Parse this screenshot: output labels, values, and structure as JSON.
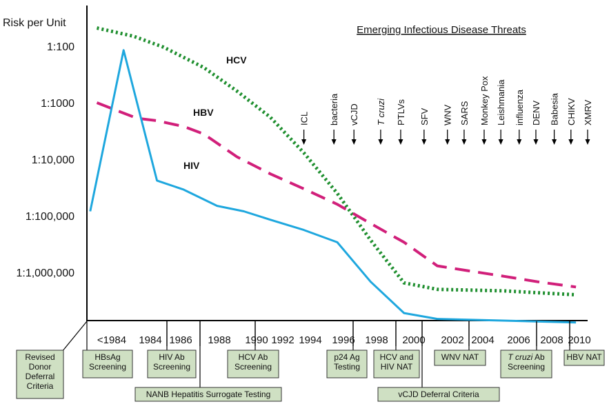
{
  "chart_data": {
    "type": "line",
    "title": "Emerging Infectious Disease Threats",
    "ylabel": "Risk per Unit",
    "y_scale": "log",
    "y_ticks": [
      {
        "label": "1:100",
        "value": 0.01
      },
      {
        "label": "1:1000",
        "value": 0.001
      },
      {
        "label": "1:10,000",
        "value": 0.0001
      },
      {
        "label": "1:100,000",
        "value": 1e-05
      },
      {
        "label": "1:1,000,000",
        "value": 1e-06
      }
    ],
    "ylim": [
      1e-07,
      0.1
    ],
    "x_ticks": [
      "<1984",
      "1984",
      "1986",
      "1988",
      "1990",
      "1992",
      "1994",
      "1996",
      "1998",
      "2000",
      "2002",
      "2004",
      "2006",
      "2008",
      "2010"
    ],
    "xlim": [
      1981,
      2011
    ],
    "series": [
      {
        "name": "HCV",
        "color": "#1f8f2f",
        "style": "dotted",
        "points": [
          {
            "x": 1981.6,
            "y": 0.021
          },
          {
            "x": 1983.8,
            "y": 0.015
          },
          {
            "x": 1985.6,
            "y": 0.0096
          },
          {
            "x": 1988.0,
            "y": 0.0042
          },
          {
            "x": 1990.0,
            "y": 0.0016
          },
          {
            "x": 1992.0,
            "y": 0.00055
          },
          {
            "x": 1994.0,
            "y": 0.00013
          },
          {
            "x": 1996.0,
            "y": 2.5e-05
          },
          {
            "x": 1998.0,
            "y": 3.7e-06
          },
          {
            "x": 2000.0,
            "y": 6.5e-07
          },
          {
            "x": 2002.0,
            "y": 5e-07
          },
          {
            "x": 2006.0,
            "y": 4.7e-07
          },
          {
            "x": 2010.3,
            "y": 4e-07
          }
        ]
      },
      {
        "name": "HBV",
        "color": "#d11f7a",
        "style": "dashed",
        "points": [
          {
            "x": 1981.6,
            "y": 0.001
          },
          {
            "x": 1984.0,
            "y": 0.00053
          },
          {
            "x": 1985.2,
            "y": 0.00048
          },
          {
            "x": 1986.8,
            "y": 0.00038
          },
          {
            "x": 1988.0,
            "y": 0.00028
          },
          {
            "x": 1990.0,
            "y": 0.00011
          },
          {
            "x": 1992.0,
            "y": 5.5e-05
          },
          {
            "x": 1994.0,
            "y": 3e-05
          },
          {
            "x": 1996.0,
            "y": 1.6e-05
          },
          {
            "x": 1998.0,
            "y": 7.3e-06
          },
          {
            "x": 2000.0,
            "y": 3.4e-06
          },
          {
            "x": 2002.0,
            "y": 1.3e-06
          },
          {
            "x": 2004.0,
            "y": 1.05e-06
          },
          {
            "x": 2006.0,
            "y": 8.5e-07
          },
          {
            "x": 2008.0,
            "y": 6.8e-07
          },
          {
            "x": 2010.3,
            "y": 5.5e-07
          }
        ]
      },
      {
        "name": "HIV",
        "color": "#1ea7de",
        "style": "solid",
        "points": [
          {
            "x": 1981.2,
            "y": 1.2e-05
          },
          {
            "x": 1983.2,
            "y": 0.0085
          },
          {
            "x": 1985.2,
            "y": 4.2e-05
          },
          {
            "x": 1986.8,
            "y": 2.9e-05
          },
          {
            "x": 1988.8,
            "y": 1.5e-05
          },
          {
            "x": 1990.4,
            "y": 1.2e-05
          },
          {
            "x": 1992.0,
            "y": 8.5e-06
          },
          {
            "x": 1994.0,
            "y": 5.6e-06
          },
          {
            "x": 1996.0,
            "y": 3.4e-06
          },
          {
            "x": 1998.0,
            "y": 6.8e-07
          },
          {
            "x": 2000.0,
            "y": 1.9e-07
          },
          {
            "x": 2002.0,
            "y": 1.5e-07
          },
          {
            "x": 2010.3,
            "y": 1.3e-07
          }
        ]
      }
    ],
    "threats": [
      {
        "label": "ICL",
        "x": 1994.0
      },
      {
        "label": "bacteria",
        "x": 1995.8
      },
      {
        "label": "vCJD",
        "x": 1997.0
      },
      {
        "label": "T cruzi",
        "x": 1998.6
      },
      {
        "label": "PTLVs",
        "x": 1999.8
      },
      {
        "label": "SFV",
        "x": 2001.2
      },
      {
        "label": "WNV",
        "x": 2002.6
      },
      {
        "label": "SARS",
        "x": 2003.6
      },
      {
        "label": "Monkey Pox",
        "x": 2004.8
      },
      {
        "label": "Leishmania",
        "x": 2005.8
      },
      {
        "label": "influenza",
        "x": 2006.9
      },
      {
        "label": "DENV",
        "x": 2007.9
      },
      {
        "label": "Babesia",
        "x": 2009.0
      },
      {
        "label": "CHIKV",
        "x": 2010.0
      },
      {
        "label": "XMRV",
        "x": 2011.0
      }
    ],
    "interventions": [
      {
        "label": "Revised Donor Deferral Criteria"
      },
      {
        "label": "HBsAg Screening"
      },
      {
        "label": "HIV Ab Screening"
      },
      {
        "label": "NANB Hepatitis Surrogate Testing"
      },
      {
        "label": "HCV Ab Screening"
      },
      {
        "label": "p24 Ag Testing"
      },
      {
        "label": "HCV and HIV NAT"
      },
      {
        "label": "vCJD Deferral Criteria"
      },
      {
        "label": "WNV NAT"
      },
      {
        "label": "T cruzi Ab Screening"
      },
      {
        "label": "HBV NAT"
      }
    ]
  }
}
